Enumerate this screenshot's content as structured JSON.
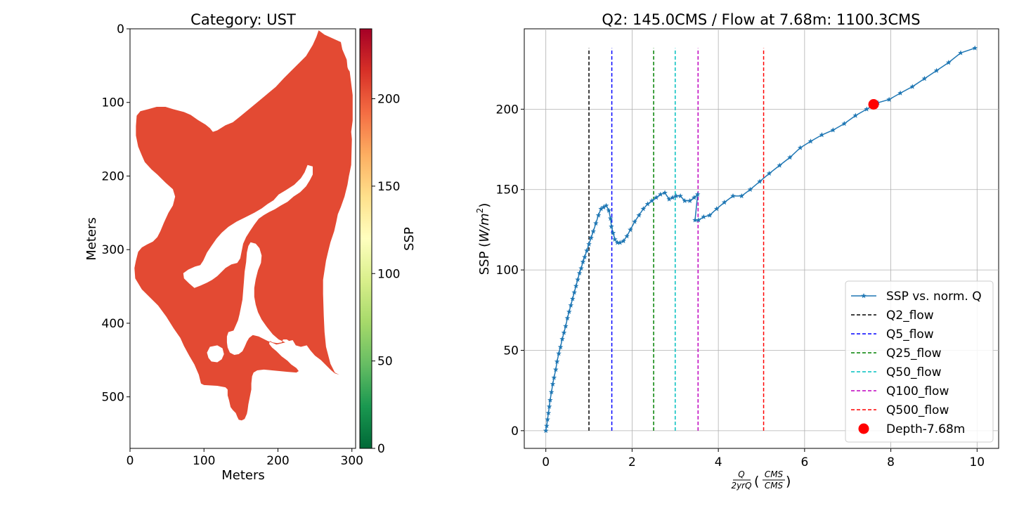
{
  "chart_data": [
    {
      "type": "heatmap",
      "title": "Category: UST",
      "xlabel": "Meters",
      "ylabel": "Meters",
      "xlim": [
        0,
        305
      ],
      "ylim": [
        570,
        0
      ],
      "xticks": [
        0,
        100,
        200,
        300
      ],
      "yticks": [
        0,
        100,
        200,
        300,
        400,
        500
      ],
      "colorbar": {
        "label": "SSP",
        "range": [
          0,
          240
        ],
        "ticks": [
          0,
          50,
          100,
          150,
          200
        ],
        "colormap": "RdYlGn_r",
        "stops": [
          "#006837",
          "#1a9850",
          "#66bd63",
          "#a6d96a",
          "#d9ef8b",
          "#ffffbf",
          "#fee08b",
          "#fdae61",
          "#f46d43",
          "#d73027",
          "#a50026"
        ]
      },
      "fill_value": 203,
      "fill_color": "#e34a33",
      "region_outline": [
        [
          255,
          2
        ],
        [
          263,
          8
        ],
        [
          285,
          18
        ],
        [
          287,
          28
        ],
        [
          293,
          42
        ],
        [
          294,
          52
        ],
        [
          295,
          55
        ],
        [
          297,
          58
        ],
        [
          301,
          90
        ],
        [
          301,
          125
        ],
        [
          299,
          140
        ],
        [
          300,
          150
        ],
        [
          299,
          185
        ],
        [
          297,
          195
        ],
        [
          296,
          200
        ],
        [
          294,
          212
        ],
        [
          290,
          228
        ],
        [
          285,
          242
        ],
        [
          281,
          252
        ],
        [
          279,
          262
        ],
        [
          276,
          275
        ],
        [
          271,
          290
        ],
        [
          268,
          302
        ],
        [
          265,
          315
        ],
        [
          263,
          328
        ],
        [
          261,
          341
        ],
        [
          261,
          360
        ],
        [
          262,
          390
        ],
        [
          263,
          412
        ],
        [
          265,
          432
        ],
        [
          271,
          455
        ],
        [
          277,
          467
        ],
        [
          283,
          470
        ],
        [
          277,
          468
        ],
        [
          272,
          464
        ],
        [
          266,
          458
        ],
        [
          258,
          450
        ],
        [
          250,
          444
        ],
        [
          244,
          437
        ],
        [
          239,
          430
        ],
        [
          231,
          432
        ],
        [
          224,
          430
        ],
        [
          220,
          423
        ],
        [
          215,
          424
        ],
        [
          212,
          422
        ],
        [
          207,
          422
        ],
        [
          205,
          426
        ],
        [
          199,
          427
        ],
        [
          193,
          426
        ],
        [
          189,
          424
        ],
        [
          188,
          428
        ],
        [
          192,
          433
        ],
        [
          198,
          438
        ],
        [
          205,
          445
        ],
        [
          213,
          451
        ],
        [
          218,
          456
        ],
        [
          225,
          461
        ],
        [
          228,
          465
        ],
        [
          225,
          467
        ],
        [
          213,
          466
        ],
        [
          202,
          465
        ],
        [
          192,
          464
        ],
        [
          181,
          463
        ],
        [
          172,
          464
        ],
        [
          167,
          467
        ],
        [
          165,
          472
        ],
        [
          164,
          482
        ],
        [
          164,
          490
        ],
        [
          162,
          500
        ],
        [
          160,
          510
        ],
        [
          159,
          518
        ],
        [
          158,
          523
        ],
        [
          155,
          530
        ],
        [
          151,
          532
        ],
        [
          147,
          531
        ],
        [
          145,
          527
        ],
        [
          143,
          522
        ],
        [
          139,
          518
        ],
        [
          136,
          514
        ],
        [
          134,
          505
        ],
        [
          132,
          498
        ],
        [
          132,
          490
        ],
        [
          129,
          487
        ],
        [
          118,
          485
        ],
        [
          100,
          484
        ],
        [
          96,
          482
        ],
        [
          93,
          470
        ],
        [
          87,
          456
        ],
        [
          80,
          444
        ],
        [
          73,
          431
        ],
        [
          68,
          420
        ],
        [
          59,
          407
        ],
        [
          49,
          391
        ],
        [
          38,
          376
        ],
        [
          26,
          364
        ],
        [
          16,
          354
        ],
        [
          7,
          339
        ],
        [
          6,
          325
        ],
        [
          8,
          315
        ],
        [
          11,
          303
        ],
        [
          16,
          297
        ],
        [
          23,
          293
        ],
        [
          31,
          289
        ],
        [
          37,
          283
        ],
        [
          41,
          275
        ],
        [
          46,
          263
        ],
        [
          52,
          250
        ],
        [
          58,
          240
        ],
        [
          61,
          228
        ],
        [
          58,
          218
        ],
        [
          48,
          209
        ],
        [
          37,
          198
        ],
        [
          29,
          191
        ],
        [
          20,
          181
        ],
        [
          16,
          172
        ],
        [
          11,
          160
        ],
        [
          8,
          145
        ],
        [
          8,
          132
        ],
        [
          9,
          118
        ],
        [
          14,
          112
        ],
        [
          25,
          109
        ],
        [
          36,
          106
        ],
        [
          48,
          106
        ],
        [
          58,
          109
        ],
        [
          73,
          113
        ],
        [
          82,
          117
        ],
        [
          92,
          124
        ],
        [
          102,
          130
        ],
        [
          108,
          135
        ],
        [
          112,
          140
        ],
        [
          118,
          138
        ],
        [
          129,
          131
        ],
        [
          139,
          127
        ],
        [
          149,
          119
        ],
        [
          161,
          109
        ],
        [
          173,
          99
        ],
        [
          185,
          89
        ],
        [
          197,
          79
        ],
        [
          208,
          67
        ],
        [
          218,
          57
        ],
        [
          228,
          47
        ],
        [
          238,
          37
        ],
        [
          247,
          22
        ],
        [
          252,
          11
        ]
      ],
      "holes": [
        [
          [
            240,
            185
          ],
          [
            247,
            187
          ],
          [
            247,
            198
          ],
          [
            243,
            206
          ],
          [
            238,
            214
          ],
          [
            230,
            222
          ],
          [
            221,
            228
          ],
          [
            213,
            235
          ],
          [
            204,
            240
          ],
          [
            196,
            245
          ],
          [
            188,
            249
          ],
          [
            181,
            253
          ],
          [
            174,
            258
          ],
          [
            168,
            266
          ],
          [
            162,
            275
          ],
          [
            157,
            283
          ],
          [
            153,
            292
          ],
          [
            151,
            302
          ],
          [
            149,
            312
          ],
          [
            145,
            318
          ],
          [
            137,
            320
          ],
          [
            129,
            325
          ],
          [
            124,
            330
          ],
          [
            118,
            336
          ],
          [
            111,
            341
          ],
          [
            104,
            345
          ],
          [
            95,
            349
          ],
          [
            87,
            352
          ],
          [
            80,
            346
          ],
          [
            73,
            339
          ],
          [
            72,
            332
          ],
          [
            79,
            327
          ],
          [
            88,
            323
          ],
          [
            95,
            321
          ],
          [
            99,
            315
          ],
          [
            104,
            304
          ],
          [
            110,
            295
          ],
          [
            117,
            285
          ],
          [
            124,
            277
          ],
          [
            133,
            269
          ],
          [
            144,
            262
          ],
          [
            156,
            256
          ],
          [
            168,
            250
          ],
          [
            178,
            244
          ],
          [
            186,
            238
          ],
          [
            194,
            233
          ],
          [
            201,
            225
          ],
          [
            211,
            219
          ],
          [
            222,
            212
          ],
          [
            231,
            203
          ],
          [
            236,
            195
          ]
        ],
        [
          [
            163,
            290
          ],
          [
            170,
            292
          ],
          [
            175,
            298
          ],
          [
            178,
            308
          ],
          [
            177,
            318
          ],
          [
            173,
            328
          ],
          [
            170,
            340
          ],
          [
            168,
            352
          ],
          [
            168,
            364
          ],
          [
            170,
            375
          ],
          [
            173,
            385
          ],
          [
            178,
            395
          ],
          [
            185,
            405
          ],
          [
            193,
            415
          ],
          [
            201,
            422
          ],
          [
            210,
            426
          ],
          [
            198,
            429
          ],
          [
            186,
            424
          ],
          [
            174,
            418
          ],
          [
            166,
            416
          ],
          [
            161,
            420
          ],
          [
            158,
            425
          ],
          [
            155,
            432
          ],
          [
            152,
            438
          ],
          [
            147,
            442
          ],
          [
            141,
            443
          ],
          [
            135,
            440
          ],
          [
            132,
            433
          ],
          [
            131,
            426
          ],
          [
            131,
            418
          ],
          [
            133,
            412
          ],
          [
            140,
            410
          ],
          [
            143,
            403
          ],
          [
            146,
            396
          ],
          [
            148,
            388
          ],
          [
            150,
            378
          ],
          [
            152,
            368
          ],
          [
            153,
            356
          ],
          [
            154,
            343
          ],
          [
            155,
            330
          ],
          [
            157,
            317
          ],
          [
            158,
            304
          ],
          [
            160,
            295
          ]
        ],
        [
          [
            108,
            432
          ],
          [
            118,
            430
          ],
          [
            125,
            434
          ],
          [
            127,
            442
          ],
          [
            124,
            449
          ],
          [
            118,
            453
          ],
          [
            110,
            452
          ],
          [
            106,
            447
          ],
          [
            104,
            440
          ]
        ]
      ]
    },
    {
      "type": "line",
      "title": "Q2: 145.0CMS / Flow at 7.68m: 1100.3CMS",
      "xlabel": "Q/2yrQ (CMS/CMS)",
      "xlabel_numerator": "Q",
      "xlabel_denominator": "2yrQ",
      "xlabel_unit_numerator": "CMS",
      "xlabel_unit_denominator": "CMS",
      "ylabel": "SSP",
      "ylabel_unit_base": "W/m",
      "ylabel_unit_exp": "2",
      "xlim": [
        -0.5,
        10.5
      ],
      "ylim": [
        -11,
        250
      ],
      "xticks": [
        0,
        2,
        4,
        6,
        8,
        10
      ],
      "yticks": [
        0,
        50,
        100,
        150,
        200
      ],
      "grid": true,
      "legend_position": "lower-right",
      "series": [
        {
          "name": "SSP vs. norm. Q",
          "color": "#1f77b4",
          "marker": "star",
          "x": [
            0.0,
            0.02,
            0.04,
            0.06,
            0.08,
            0.1,
            0.13,
            0.16,
            0.19,
            0.23,
            0.26,
            0.3,
            0.34,
            0.38,
            0.42,
            0.46,
            0.5,
            0.54,
            0.58,
            0.62,
            0.66,
            0.7,
            0.74,
            0.78,
            0.82,
            0.86,
            0.9,
            0.95,
            1.0,
            1.05,
            1.1,
            1.16,
            1.22,
            1.28,
            1.34,
            1.4,
            1.46,
            1.5,
            1.52,
            1.56,
            1.6,
            1.66,
            1.72,
            1.8,
            1.88,
            1.96,
            2.06,
            2.16,
            2.26,
            2.36,
            2.46,
            2.56,
            2.66,
            2.76,
            2.86,
            2.94,
            3.02,
            3.12,
            3.22,
            3.34,
            3.44,
            3.52,
            3.46,
            3.54,
            3.66,
            3.8,
            3.96,
            4.14,
            4.34,
            4.54,
            4.74,
            4.96,
            5.18,
            5.42,
            5.66,
            5.9,
            6.14,
            6.4,
            6.66,
            6.92,
            7.18,
            7.44,
            7.7,
            7.96,
            8.22,
            8.5,
            8.78,
            9.06,
            9.34,
            9.62,
            9.95
          ],
          "y": [
            0,
            3,
            7,
            11,
            15,
            19,
            24,
            29,
            33,
            38,
            43,
            48,
            52,
            57,
            61,
            65,
            70,
            74,
            78,
            82,
            86,
            90,
            94,
            98,
            101,
            105,
            108,
            112,
            116,
            120,
            124,
            129,
            134,
            138,
            139,
            140,
            137,
            132,
            127,
            123,
            119,
            117,
            117,
            118,
            121,
            125,
            130,
            134,
            138,
            141,
            143,
            145,
            147,
            148,
            144,
            145,
            146,
            146,
            143,
            143,
            145,
            147,
            131,
            131,
            133,
            134,
            138,
            142,
            146,
            146,
            150,
            155,
            160,
            165,
            170,
            176,
            180,
            184,
            187,
            191,
            196,
            200,
            204,
            206,
            210,
            214,
            219,
            224,
            229,
            235,
            238
          ]
        },
        {
          "name": "Q2_flow",
          "color": "#000000",
          "style": "dashed",
          "x": 1.0
        },
        {
          "name": "Q5_flow",
          "color": "#0000ff",
          "style": "dashed",
          "x": 1.53
        },
        {
          "name": "Q25_flow",
          "color": "#008000",
          "style": "dashed",
          "x": 2.5
        },
        {
          "name": "Q50_flow",
          "color": "#00bfbf",
          "style": "dashed",
          "x": 3.0
        },
        {
          "name": "Q100_flow",
          "color": "#bf00bf",
          "style": "dashed",
          "x": 3.53
        },
        {
          "name": "Q500_flow",
          "color": "#ff0000",
          "style": "dashed",
          "x": 5.05
        },
        {
          "name": "Depth-7.68m",
          "color": "#ff0000",
          "marker": "circle",
          "x": 7.6,
          "y": 203
        }
      ],
      "vline_range": [
        0,
        238
      ]
    }
  ]
}
